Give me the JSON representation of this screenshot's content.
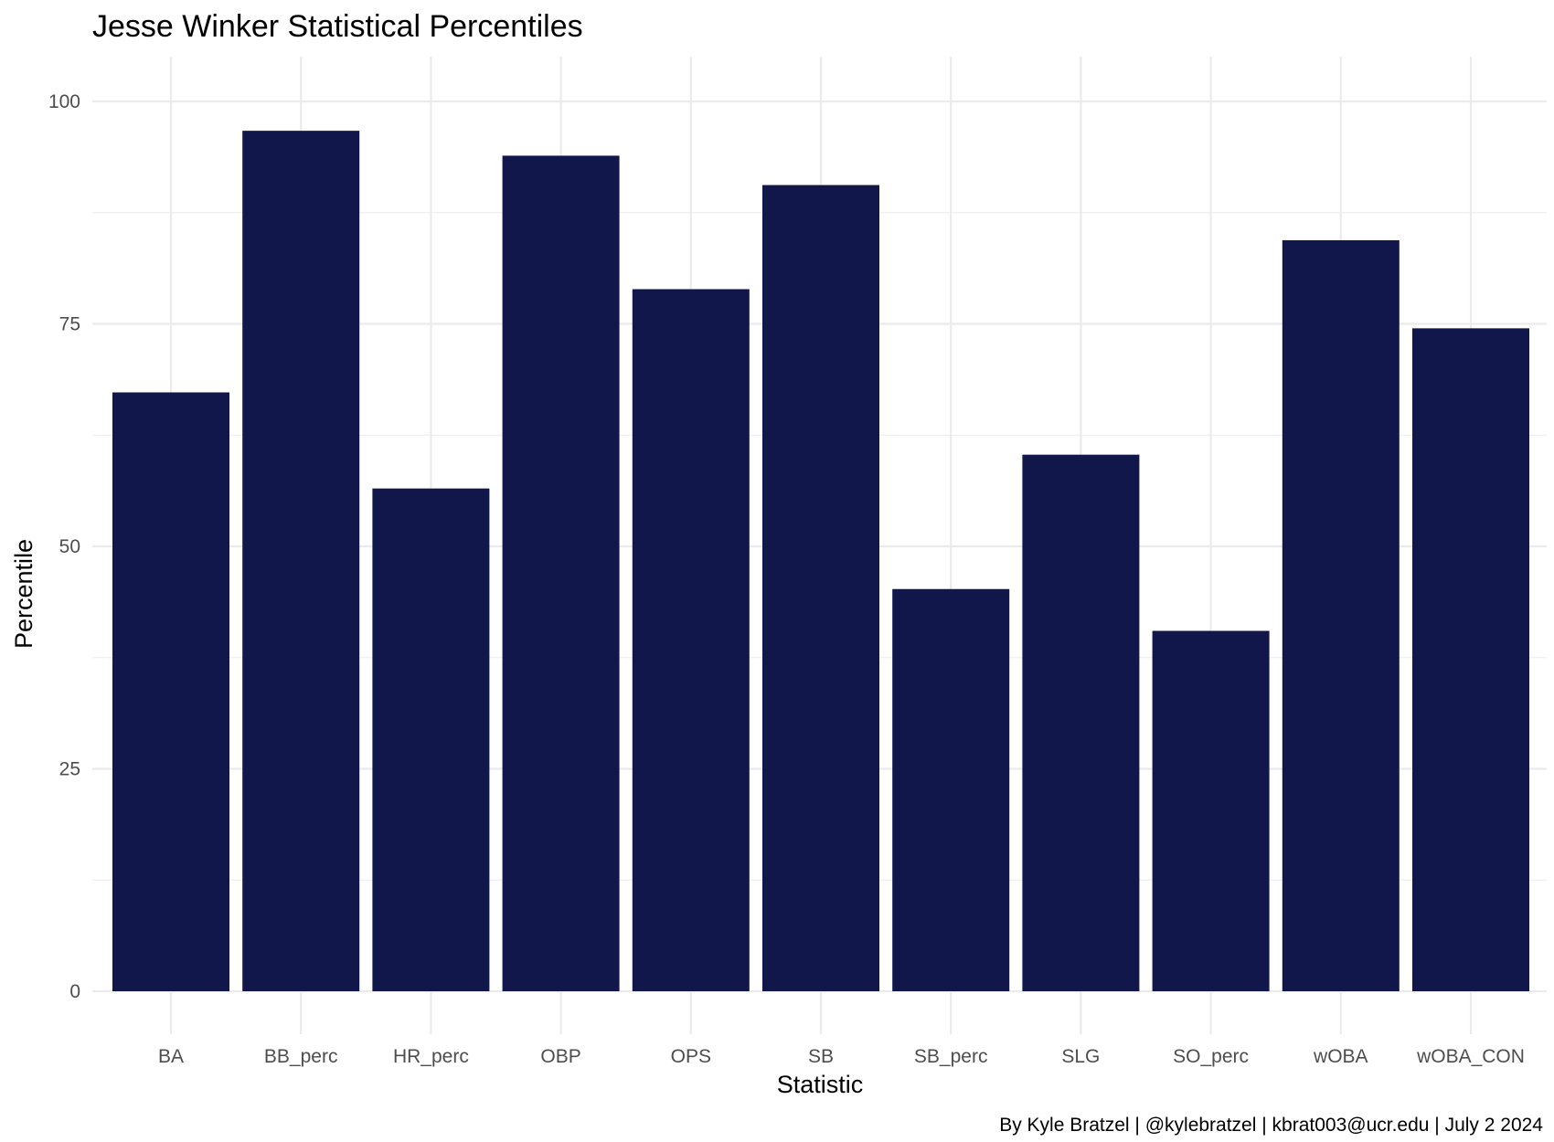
{
  "chart_data": {
    "type": "bar",
    "title": "Jesse Winker Statistical Percentiles",
    "xlabel": "Statistic",
    "ylabel": "Percentile",
    "caption": "By Kyle Bratzel | @kylebratzel | kbrat003@ucr.edu | July 2 2024",
    "categories": [
      "BA",
      "BB_perc",
      "HR_perc",
      "OBP",
      "OPS",
      "SB",
      "SB_perc",
      "SLG",
      "SO_perc",
      "wOBA",
      "wOBA_CON"
    ],
    "values": [
      67.3,
      96.7,
      56.5,
      93.9,
      78.9,
      90.6,
      45.2,
      60.3,
      40.5,
      84.4,
      74.5
    ],
    "ylim": [
      0,
      100
    ],
    "yticks": [
      0,
      25,
      50,
      75,
      100
    ],
    "grid": true,
    "bar_color": "#11174a"
  }
}
